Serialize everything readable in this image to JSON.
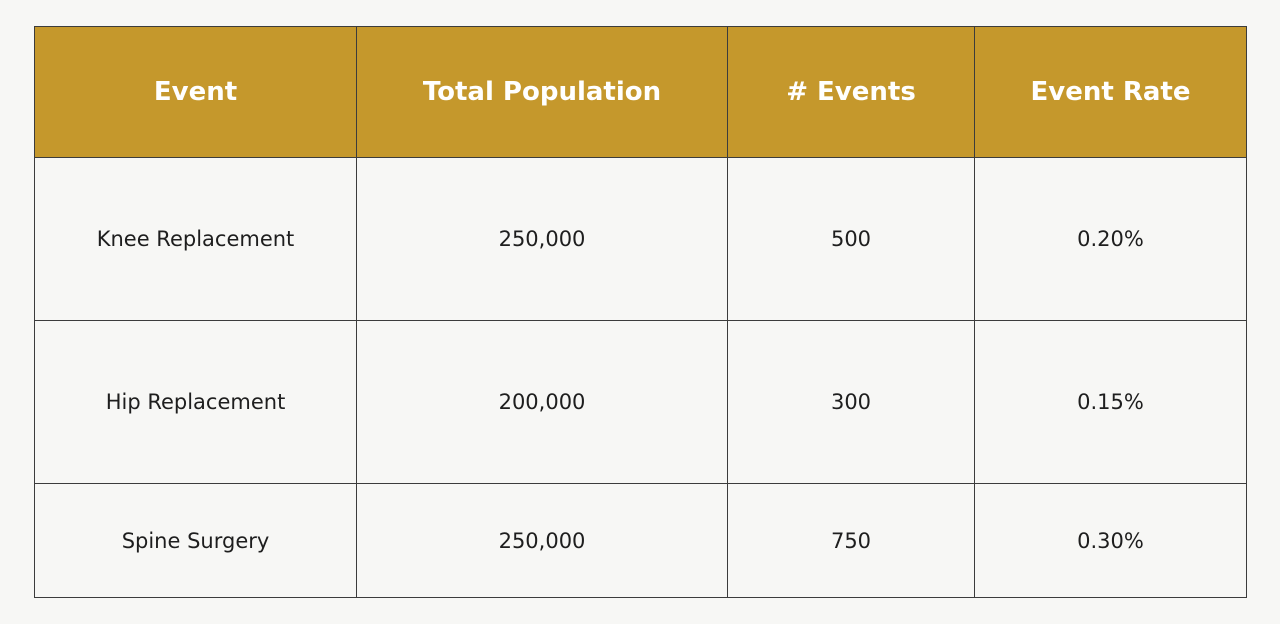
{
  "chart_data": {
    "type": "table",
    "columns": [
      "Event",
      "Total Population",
      "#  Events",
      "Event Rate"
    ],
    "rows": [
      [
        "Knee Replacement",
        "250,000",
        "500",
        "0.20%"
      ],
      [
        "Hip Replacement",
        "200,000",
        "300",
        "0.15%"
      ],
      [
        "Spine Surgery",
        "250,000",
        "750",
        "0.30%"
      ]
    ]
  },
  "colors": {
    "header_background": "#c5982c",
    "header_text": "#ffffff",
    "body_text": "#1e1e1e",
    "grid_line": "#3c3c3c",
    "page_background": "#f7f7f5"
  }
}
